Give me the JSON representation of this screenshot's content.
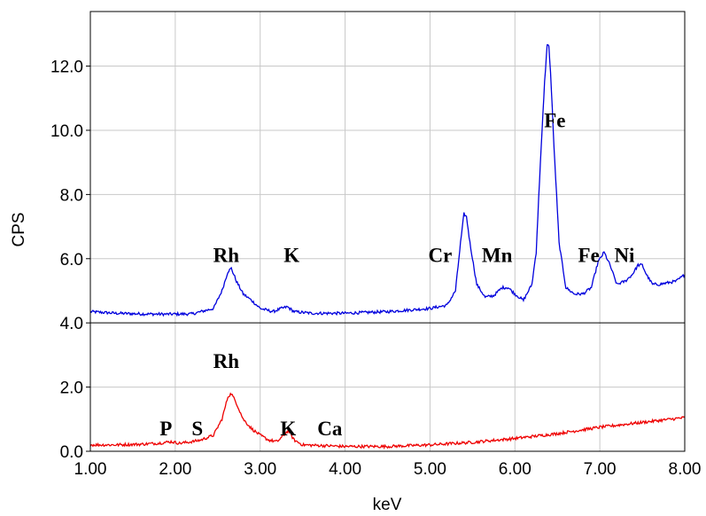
{
  "chart_data": {
    "type": "line",
    "xlabel": "keV",
    "ylabel": "CPS",
    "grid": true,
    "x_ticks": [
      "1.00",
      "2.00",
      "3.00",
      "4.00",
      "5.00",
      "6.00",
      "7.00",
      "8.00"
    ],
    "xlim": [
      1.0,
      8.0
    ],
    "y_ticks": [
      "0.0",
      "2.0",
      "4.0",
      "6.0",
      "8.0",
      "10.0",
      "12.0"
    ],
    "ylim": [
      0,
      13.7
    ],
    "panel_split": 4.0,
    "series": [
      {
        "color": "#0000dd",
        "x": [
          1.0,
          1.3,
          1.6,
          1.9,
          2.2,
          2.45,
          2.55,
          2.62,
          2.66,
          2.72,
          2.8,
          2.9,
          3.0,
          3.15,
          3.25,
          3.32,
          3.4,
          3.6,
          4.0,
          4.5,
          5.0,
          5.2,
          5.3,
          5.36,
          5.4,
          5.43,
          5.47,
          5.55,
          5.65,
          5.75,
          5.85,
          5.92,
          6.0,
          6.1,
          6.2,
          6.25,
          6.3,
          6.35,
          6.38,
          6.4,
          6.42,
          6.46,
          6.52,
          6.6,
          6.7,
          6.8,
          6.9,
          6.98,
          7.05,
          7.12,
          7.2,
          7.3,
          7.38,
          7.45,
          7.5,
          7.55,
          7.62,
          7.7,
          7.8,
          7.9,
          8.0
        ],
        "y": [
          4.35,
          4.3,
          4.28,
          4.27,
          4.28,
          4.45,
          5.0,
          5.6,
          5.7,
          5.3,
          4.9,
          4.7,
          4.45,
          4.35,
          4.45,
          4.5,
          4.35,
          4.3,
          4.3,
          4.35,
          4.45,
          4.55,
          5.0,
          6.5,
          7.4,
          7.3,
          6.5,
          5.2,
          4.8,
          4.85,
          5.1,
          5.1,
          4.9,
          4.7,
          5.2,
          6.2,
          9.0,
          11.5,
          12.7,
          12.6,
          11.8,
          9.5,
          6.5,
          5.1,
          4.9,
          4.9,
          5.1,
          5.9,
          6.2,
          5.8,
          5.2,
          5.3,
          5.5,
          5.8,
          5.8,
          5.5,
          5.2,
          5.2,
          5.25,
          5.3,
          5.5
        ]
      },
      {
        "color": "#ee0000",
        "x": [
          1.0,
          1.3,
          1.6,
          1.8,
          1.95,
          2.05,
          2.2,
          2.3,
          2.45,
          2.55,
          2.62,
          2.66,
          2.72,
          2.8,
          2.9,
          3.0,
          3.1,
          3.2,
          3.28,
          3.33,
          3.4,
          3.5,
          3.7,
          4.0,
          4.5,
          5.0,
          5.5,
          6.0,
          6.5,
          7.0,
          7.5,
          8.0
        ],
        "y": [
          0.2,
          0.2,
          0.22,
          0.25,
          0.3,
          0.25,
          0.3,
          0.35,
          0.5,
          1.0,
          1.7,
          1.8,
          1.5,
          1.0,
          0.7,
          0.5,
          0.35,
          0.3,
          0.5,
          0.65,
          0.35,
          0.2,
          0.18,
          0.15,
          0.15,
          0.2,
          0.28,
          0.4,
          0.55,
          0.75,
          0.9,
          1.05
        ]
      }
    ],
    "annotations": [
      {
        "text": "Rh",
        "x": 2.6,
        "y": 5.9
      },
      {
        "text": "K",
        "x": 3.37,
        "y": 5.9
      },
      {
        "text": "Cr",
        "x": 5.12,
        "y": 5.9
      },
      {
        "text": "Mn",
        "x": 5.79,
        "y": 5.9
      },
      {
        "text": "Fe",
        "x": 6.47,
        "y": 10.1
      },
      {
        "text": "Fe",
        "x": 6.87,
        "y": 5.9
      },
      {
        "text": "Ni",
        "x": 7.29,
        "y": 5.9
      },
      {
        "text": "Rh",
        "x": 2.6,
        "y": 2.6
      },
      {
        "text": "P",
        "x": 1.89,
        "y": 0.5
      },
      {
        "text": "S",
        "x": 2.26,
        "y": 0.5
      },
      {
        "text": "K",
        "x": 3.33,
        "y": 0.5
      },
      {
        "text": "Ca",
        "x": 3.82,
        "y": 0.5
      }
    ]
  }
}
